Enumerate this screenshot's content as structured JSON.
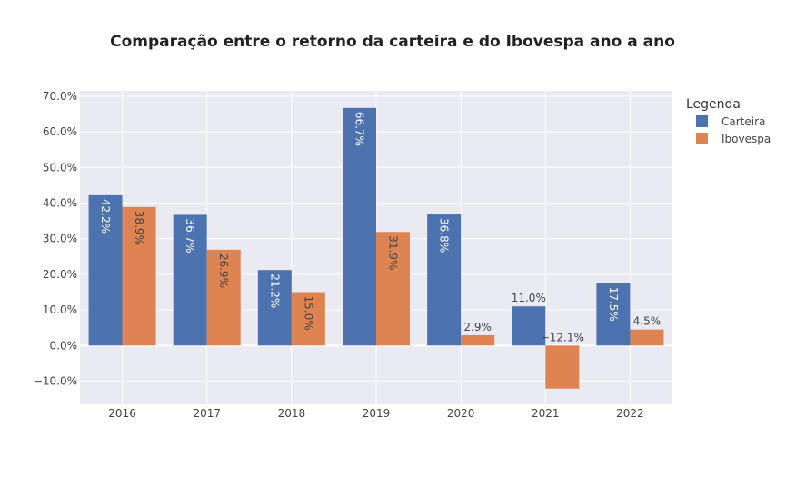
{
  "chart_data": {
    "type": "bar",
    "title": "Comparação entre o retorno da carteira e do Ibovespa ano a ano",
    "xlabel": "",
    "ylabel": "",
    "categories": [
      "2016",
      "2017",
      "2018",
      "2019",
      "2020",
      "2021",
      "2022"
    ],
    "series": [
      {
        "name": "Carteira",
        "color": "#4c72b0",
        "values": [
          42.2,
          36.7,
          21.2,
          66.7,
          36.8,
          11.0,
          17.5
        ],
        "labels": [
          "42.2%",
          "36.7%",
          "21.2%",
          "66.7%",
          "36.8%",
          "11.0%",
          "17.5%"
        ]
      },
      {
        "name": "Ibovespa",
        "color": "#dd8452",
        "values": [
          38.9,
          26.9,
          15.0,
          31.9,
          2.9,
          -12.1,
          4.5
        ],
        "labels": [
          "38.9%",
          "26.9%",
          "15.0%",
          "31.9%",
          "2.9%",
          "−12.1%",
          "4.5%"
        ]
      }
    ],
    "ylim": [
      -16.5,
      71.5
    ],
    "y_ticks": [
      -10,
      0,
      10,
      20,
      30,
      40,
      50,
      60,
      70
    ],
    "y_tick_labels": [
      "−10.0%",
      "0.0%",
      "10.0%",
      "20.0%",
      "30.0%",
      "40.0%",
      "50.0%",
      "60.0%",
      "70.0%"
    ],
    "legend": {
      "title": "Legenda",
      "placement": "right"
    },
    "grid": true,
    "plot_background": "#eaeaf2"
  }
}
